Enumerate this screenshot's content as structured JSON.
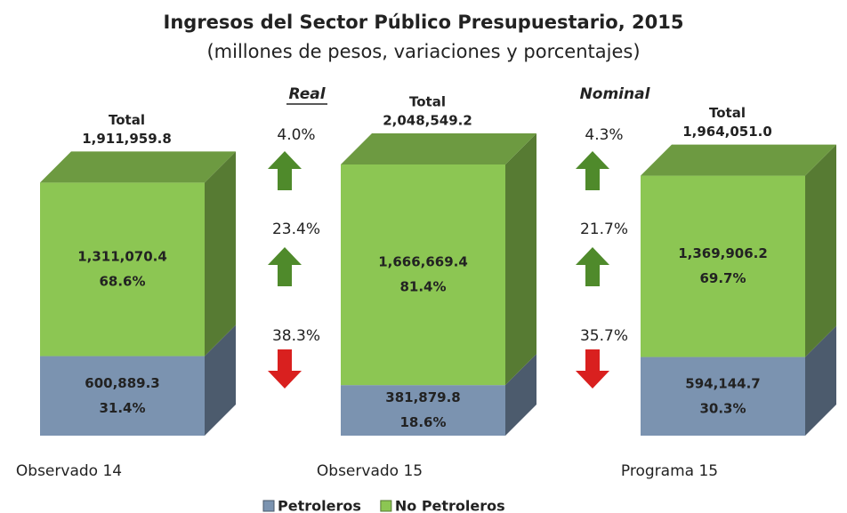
{
  "chart_data": {
    "type": "stacked-bar-3d",
    "title": "Ingresos del Sector Público Presupuestario, 2015",
    "subtitle": "(millones de pesos, variaciones y porcentajes)",
    "categories": [
      "Observado 14",
      "Observado 15",
      "Programa 15"
    ],
    "series": [
      {
        "name": "Petroleros",
        "color": "#7b93b0",
        "values": [
          600889.3,
          381879.8,
          594144.7
        ],
        "value_labels": [
          "600,889.3",
          "381,879.8",
          "594,144.7"
        ],
        "shares": [
          31.4,
          18.6,
          30.3
        ],
        "share_labels": [
          "31.4%",
          "18.6%",
          "30.3%"
        ]
      },
      {
        "name": "No Petroleros",
        "color": "#8cc653",
        "values": [
          1311070.4,
          1666669.4,
          1369906.2
        ],
        "value_labels": [
          "1,311,070.4",
          "1,666,669.4",
          "1,369,906.2"
        ],
        "shares": [
          68.6,
          81.4,
          69.7
        ],
        "share_labels": [
          "68.6%",
          "81.4%",
          "69.7%"
        ]
      }
    ],
    "total_caption": "Total",
    "totals": [
      1911959.8,
      2048549.2,
      1964051.0
    ],
    "total_labels": [
      "1,911,959.8",
      "2,048,549.2",
      "1,964,051.0"
    ],
    "annotations": [
      {
        "label": "Real",
        "changes": [
          {
            "value": 4.0,
            "label": "4.0%",
            "direction": "up"
          },
          {
            "value": 23.4,
            "label": "23.4%",
            "direction": "up"
          },
          {
            "value": 38.3,
            "label": "38.3%",
            "direction": "down"
          }
        ]
      },
      {
        "label": "Nominal",
        "changes": [
          {
            "value": 4.3,
            "label": "4.3%",
            "direction": "up"
          },
          {
            "value": 21.7,
            "label": "21.7%",
            "direction": "up"
          },
          {
            "value": 35.7,
            "label": "35.7%",
            "direction": "down"
          }
        ]
      }
    ],
    "legend": "bottom"
  }
}
